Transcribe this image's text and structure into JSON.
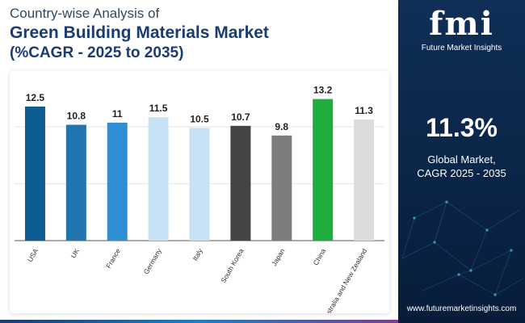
{
  "header": {
    "line1": "Country-wise Analysis of",
    "line2": "Green Building Materials Market",
    "line3": "(%CAGR - 2025 to 2035)"
  },
  "side": {
    "logo_text": "fmi",
    "logo_sub": "Future Market Insights",
    "stat_value": "11.3%",
    "stat_label1": "Global Market,",
    "stat_label2": "CAGR 2025 - 2035",
    "url": "www.futuremarketinsights.com"
  },
  "chart_data": {
    "type": "bar",
    "title": "Green Building Materials Market (%CAGR - 2025 to 2035)",
    "categories": [
      "USA",
      "UK",
      "France",
      "Germany",
      "Italy",
      "South Korea",
      "Japan",
      "China",
      "Australia and New Zealand"
    ],
    "values": [
      12.5,
      10.8,
      11,
      11.5,
      10.5,
      10.7,
      9.8,
      13.2,
      11.3
    ],
    "value_labels": [
      "12.5",
      "10.8",
      "11",
      "11.5",
      "10.5",
      "10.7",
      "9.8",
      "13.2",
      "11.3"
    ],
    "colors": [
      "#0d5c94",
      "#2274b0",
      "#2e8fd6",
      "#c7e2f5",
      "#c7e2f5",
      "#444444",
      "#7d7d7d",
      "#1fad3d",
      "#dcdcdc"
    ],
    "ylim": [
      0,
      14
    ],
    "gridlines": [
      0,
      5.3,
      10.6
    ],
    "xlabel": "",
    "ylabel": ""
  }
}
